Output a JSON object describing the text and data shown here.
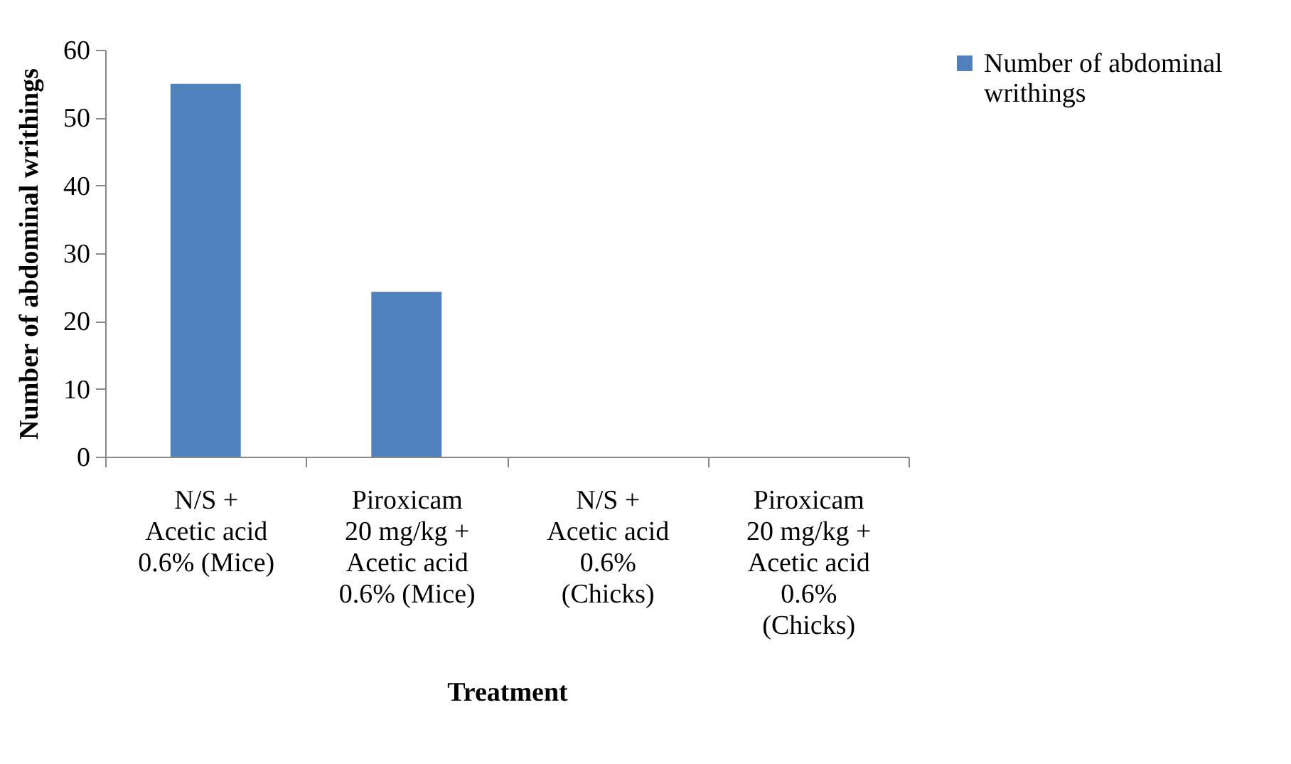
{
  "chart_data": {
    "type": "bar",
    "xlabel": "Treatment",
    "ylabel": "Number of abdominal writhings",
    "categories": [
      "N/S + Acetic acid 0.6% (Mice)",
      "Piroxicam 20 mg/kg + Acetic acid 0.6% (Mice)",
      "N/S + Acetic acid 0.6% (Chicks)",
      "Piroxicam 20 mg/kg + Acetic acid 0.6% (Chicks)"
    ],
    "series": [
      {
        "name": "Number of abdominal writhings",
        "color": "#4f81bd",
        "values": [
          55,
          24.3,
          0,
          0
        ]
      }
    ],
    "ylim": [
      0,
      60
    ],
    "yticks": [
      0,
      10,
      20,
      30,
      40,
      50,
      60
    ],
    "grid": false,
    "legend": "right"
  }
}
